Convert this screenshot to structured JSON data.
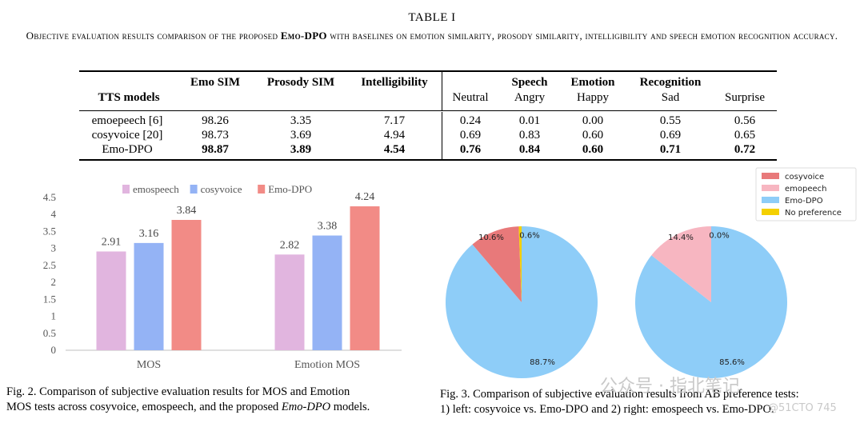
{
  "table": {
    "title": "TABLE I",
    "caption_pre": "Objective evaluation results comparison of the proposed ",
    "caption_em": "Emo-DPO",
    "caption_post": " with baselines on emotion similarity, prosody similarity, intelligibility and speech emotion recognition accuracy.",
    "header_top": {
      "emo_sim": "Emo SIM",
      "prosody_sim": "Prosody SIM",
      "intelligibility": "Intelligibility",
      "speech": "Speech",
      "emotion": "Emotion",
      "recognition": "Recognition"
    },
    "header_bottom": {
      "tts_models": "TTS models",
      "neutral": "Neutral",
      "angry": "Angry",
      "happy": "Happy",
      "sad": "Sad",
      "surprise": "Surprise"
    },
    "rows": [
      {
        "model": "emoepeech [6]",
        "emo_sim": "98.26",
        "prosody_sim": "3.35",
        "intelligibility": "7.17",
        "neutral": "0.24",
        "angry": "0.01",
        "happy": "0.00",
        "sad": "0.55",
        "surprise": "0.56"
      },
      {
        "model": "cosyvoice [20]",
        "emo_sim": "98.73",
        "prosody_sim": "3.69",
        "intelligibility": "4.94",
        "neutral": "0.69",
        "angry": "0.83",
        "happy": "0.60",
        "sad": "0.69",
        "surprise": "0.65"
      },
      {
        "model": "Emo-DPO",
        "emo_sim": "98.87",
        "prosody_sim": "3.89",
        "intelligibility": "4.54",
        "neutral": "0.76",
        "angry": "0.84",
        "happy": "0.60",
        "sad": "0.71",
        "surprise": "0.72"
      }
    ]
  },
  "chart_data": [
    {
      "type": "bar",
      "categories": [
        "MOS",
        "Emotion MOS"
      ],
      "series": [
        {
          "name": "emospeech",
          "values": [
            2.91,
            2.82
          ],
          "color": "#e1b5df"
        },
        {
          "name": "cosyvoice",
          "values": [
            3.16,
            3.38
          ],
          "color": "#94b3f5"
        },
        {
          "name": "Emo-DPO",
          "values": [
            3.84,
            4.24
          ],
          "color": "#f28b86"
        }
      ],
      "yticks": [
        "0",
        "0.5",
        "1",
        "1.5",
        "2",
        "2.5",
        "3",
        "3.5",
        "4",
        "4.5"
      ],
      "ylim": [
        0,
        4.5
      ],
      "legend": "top",
      "grid": false
    },
    {
      "type": "pie",
      "legend": "top-right",
      "legend_entries": [
        {
          "name": "cosyvoice",
          "color": "#e8797a"
        },
        {
          "name": "emopeech",
          "color": "#f7b6c1"
        },
        {
          "name": "Emo-DPO",
          "color": "#8ecdf8"
        },
        {
          "name": "No preference",
          "color": "#f4d000"
        }
      ],
      "pies": [
        {
          "slices": [
            {
              "name": "Emo-DPO",
              "value": 88.7,
              "label": "88.7%",
              "color": "#8ecdf8"
            },
            {
              "name": "cosyvoice",
              "value": 10.6,
              "label": "10.6%",
              "color": "#e8797a"
            },
            {
              "name": "No preference",
              "value": 0.6,
              "label": "0.6%",
              "color": "#f4d000"
            }
          ]
        },
        {
          "slices": [
            {
              "name": "Emo-DPO",
              "value": 85.6,
              "label": "85.6%",
              "color": "#8ecdf8"
            },
            {
              "name": "emopeech",
              "value": 14.4,
              "label": "14.4%",
              "color": "#f7b6c1"
            },
            {
              "name": "No preference",
              "value": 0.0,
              "label": "0.0%",
              "color": "#f4d000"
            }
          ]
        }
      ]
    }
  ],
  "captions": {
    "fig2_line1": "Fig. 2.  Comparison of subjective evaluation results for MOS and Emotion",
    "fig2_line2_pre": "MOS tests across cosyvoice, emospeech, and the proposed ",
    "fig2_line2_em": "Emo-DPO",
    "fig2_line2_post": " models.",
    "fig3_line1": "Fig. 3.  Comparison of subjective evaluation results from AB preference tests:",
    "fig3_line2": "1) left: cosyvoice vs. Emo-DPO and 2) right: emospeech vs. Emo-DPO."
  },
  "watermark": {
    "text": "公众号 · 指北笔记",
    "handle": "@51CTO 745"
  }
}
